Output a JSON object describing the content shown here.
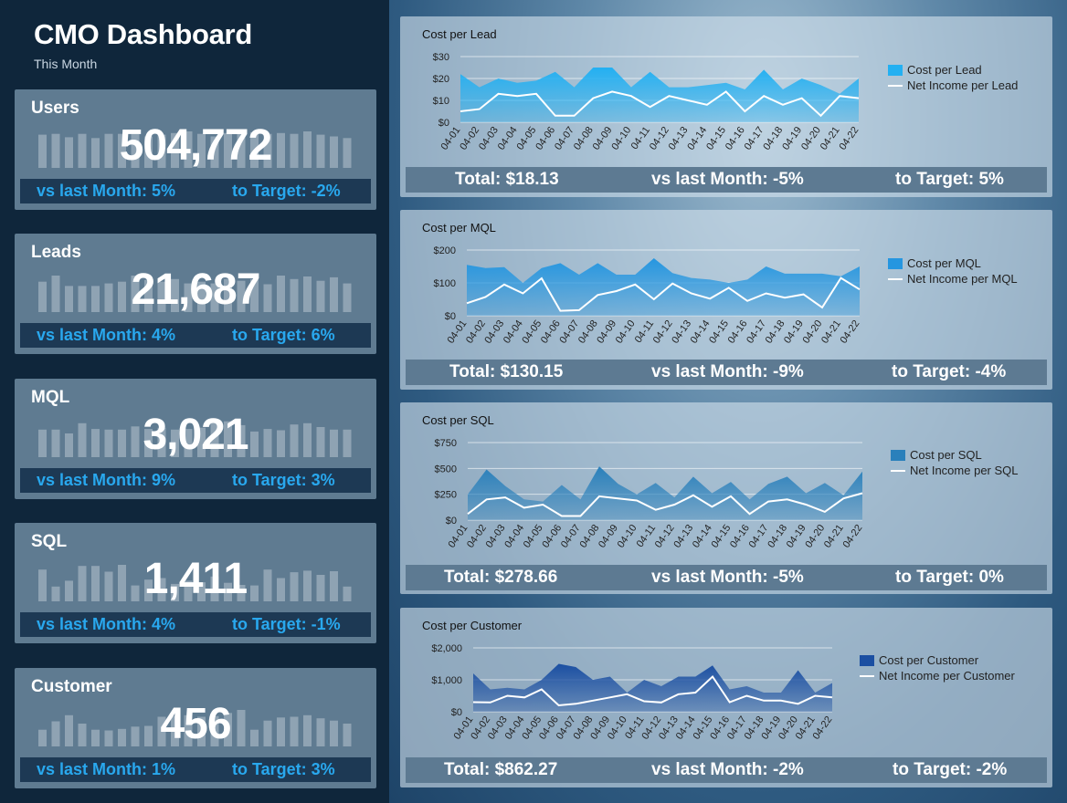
{
  "header": {
    "title": "CMO Dashboard",
    "subtitle": "This Month"
  },
  "kpis": [
    {
      "label": "Users",
      "value": "504,772",
      "vs": "vs last Month: 5%",
      "target": "to Target: -2%",
      "bars": [
        40,
        41,
        37,
        41,
        36,
        41,
        41,
        41,
        38,
        40,
        42,
        44,
        41,
        38,
        42,
        41,
        43,
        41,
        42,
        41,
        44,
        40,
        38,
        36
      ]
    },
    {
      "label": "Leads",
      "value": "21,687",
      "vs": "vs last Month: 4%",
      "target": "to Target: 6%",
      "bars": [
        35,
        42,
        30,
        30,
        30,
        33,
        35,
        42,
        37,
        35,
        38,
        33,
        35,
        33,
        38,
        36,
        38,
        32,
        42,
        38,
        41,
        36,
        40,
        33
      ]
    },
    {
      "label": "MQL",
      "value": "3,021",
      "vs": "vs last Month: 9%",
      "target": "to Target: 3%",
      "bars": [
        43,
        43,
        37,
        53,
        44,
        43,
        43,
        48,
        44,
        46,
        43,
        44,
        46,
        57,
        56,
        50,
        40,
        44,
        42,
        51,
        53,
        47,
        43,
        43
      ]
    },
    {
      "label": "SQL",
      "value": "1,411",
      "vs": "vs last Month: 4%",
      "target": "to Target: -1%",
      "bars": [
        60,
        28,
        39,
        67,
        67,
        56,
        69,
        30,
        41,
        44,
        33,
        39,
        36,
        47,
        35,
        31,
        30,
        60,
        44,
        55,
        58,
        50,
        57,
        28
      ]
    },
    {
      "label": "Customer",
      "value": "456",
      "vs": "vs last Month: 1%",
      "target": "to Target: 3%",
      "bars": [
        22,
        33,
        41,
        30,
        22,
        21,
        23,
        26,
        27,
        39,
        40,
        41,
        39,
        40,
        44,
        48,
        22,
        34,
        38,
        39,
        41,
        37,
        34,
        30
      ]
    }
  ],
  "panels": [
    {
      "title": "Cost per Lead",
      "total": "Total: $18.13",
      "vs": "vs last Month: -5%",
      "target": "to Target: 5%",
      "legend_area": "Cost per Lead",
      "legend_line": "Net Income per Lead",
      "color": "#23b0f2"
    },
    {
      "title": "Cost per MQL",
      "total": "Total: $130.15",
      "vs": "vs last Month: -9%",
      "target": "to Target: -4%",
      "legend_area": "Cost per MQL",
      "legend_line": "Net Income per MQL",
      "color": "#2596e0"
    },
    {
      "title": "Cost per SQL",
      "total": "Total: $278.66",
      "vs": "vs last Month: -5%",
      "target": "to Target: 0%",
      "legend_area": "Cost per SQL",
      "legend_line": "Net Income per SQL",
      "color": "#2a80bb"
    },
    {
      "title": "Cost per Customer",
      "total": "Total: $862.27",
      "vs": "vs last Month: -2%",
      "target": "to Target: -2%",
      "legend_area": "Cost per Customer",
      "legend_line": "Net Income per Customer",
      "color": "#1b4fa2"
    }
  ],
  "chart_data": [
    {
      "type": "area",
      "title": "Cost per Lead",
      "categories": [
        "04-01",
        "04-02",
        "04-03",
        "04-04",
        "04-05",
        "04-06",
        "04-07",
        "04-08",
        "04-09",
        "04-10",
        "04-11",
        "04-12",
        "04-13",
        "04-14",
        "04-15",
        "04-16",
        "04-17",
        "04-18",
        "04-19",
        "04-20",
        "04-21",
        "04-22"
      ],
      "series": [
        {
          "name": "Cost per Lead",
          "values": [
            22,
            16,
            20,
            18,
            19,
            23,
            16,
            25,
            25,
            16,
            23,
            16,
            16,
            17,
            18,
            15,
            24,
            15,
            20,
            17,
            13,
            20
          ]
        },
        {
          "name": "Net Income per Lead",
          "values": [
            5,
            6,
            13,
            12,
            13,
            3,
            3,
            11,
            14,
            12,
            7,
            12,
            10,
            8,
            14,
            5,
            12,
            8,
            11,
            3,
            12,
            11
          ]
        }
      ],
      "yticks": [
        "$0",
        "$10",
        "$20",
        "$30"
      ],
      "ylim": [
        0,
        30
      ],
      "legend": "right"
    },
    {
      "type": "area",
      "title": "Cost per MQL",
      "categories": [
        "04-01",
        "04-02",
        "04-03",
        "04-04",
        "04-05",
        "04-06",
        "04-07",
        "04-08",
        "04-09",
        "04-10",
        "04-11",
        "04-12",
        "04-13",
        "04-14",
        "04-15",
        "04-16",
        "04-17",
        "04-18",
        "04-19",
        "04-20",
        "04-21",
        "04-22"
      ],
      "series": [
        {
          "name": "Cost per MQL",
          "values": [
            155,
            145,
            148,
            100,
            145,
            160,
            125,
            160,
            125,
            125,
            175,
            130,
            115,
            110,
            100,
            110,
            150,
            128,
            128,
            128,
            120,
            150
          ]
        },
        {
          "name": "Net Income per MQL",
          "values": [
            38,
            57,
            95,
            68,
            114,
            15,
            17,
            63,
            75,
            95,
            50,
            98,
            68,
            52,
            85,
            45,
            68,
            55,
            65,
            25,
            115,
            80
          ]
        }
      ],
      "yticks": [
        "$0",
        "$100",
        "$200"
      ],
      "ylim": [
        0,
        200
      ],
      "legend": "right"
    },
    {
      "type": "area",
      "title": "Cost per SQL",
      "categories": [
        "04-01",
        "04-02",
        "04-03",
        "04-04",
        "04-05",
        "04-06",
        "04-07",
        "04-08",
        "04-09",
        "04-10",
        "04-11",
        "04-12",
        "04-13",
        "04-14",
        "04-15",
        "04-16",
        "04-17",
        "04-18",
        "04-19",
        "04-20",
        "04-21",
        "04-22"
      ],
      "series": [
        {
          "name": "Cost per SQL",
          "values": [
            250,
            490,
            330,
            200,
            180,
            340,
            200,
            520,
            350,
            250,
            360,
            220,
            420,
            260,
            370,
            200,
            350,
            420,
            260,
            360,
            240,
            470
          ]
        },
        {
          "name": "Net Income per SQL",
          "values": [
            60,
            200,
            220,
            120,
            150,
            40,
            40,
            230,
            210,
            190,
            100,
            150,
            240,
            130,
            230,
            60,
            180,
            200,
            150,
            80,
            210,
            260
          ]
        }
      ],
      "yticks": [
        "$0",
        "$250",
        "$500",
        "$750"
      ],
      "ylim": [
        0,
        750
      ],
      "legend": "right"
    },
    {
      "type": "area",
      "title": "Cost per Customer",
      "categories": [
        "04-01",
        "04-02",
        "04-03",
        "04-04",
        "04-05",
        "04-06",
        "04-07",
        "04-08",
        "04-09",
        "04-10",
        "04-11",
        "04-12",
        "04-13",
        "04-14",
        "04-15",
        "04-16",
        "04-17",
        "04-18",
        "04-19",
        "04-20",
        "04-21",
        "04-22"
      ],
      "series": [
        {
          "name": "Cost per Customer",
          "values": [
            1200,
            700,
            750,
            700,
            1000,
            1500,
            1400,
            1000,
            1100,
            600,
            1000,
            800,
            1100,
            1100,
            1450,
            700,
            800,
            600,
            600,
            1300,
            600,
            900
          ]
        },
        {
          "name": "Net Income per Customer",
          "values": [
            300,
            290,
            500,
            450,
            700,
            200,
            250,
            350,
            450,
            550,
            330,
            290,
            550,
            600,
            1100,
            300,
            500,
            350,
            350,
            250,
            500,
            450
          ]
        }
      ],
      "yticks": [
        "$0",
        "$1,000",
        "$2,000"
      ],
      "ylim": [
        0,
        2000
      ],
      "legend": "right"
    }
  ]
}
